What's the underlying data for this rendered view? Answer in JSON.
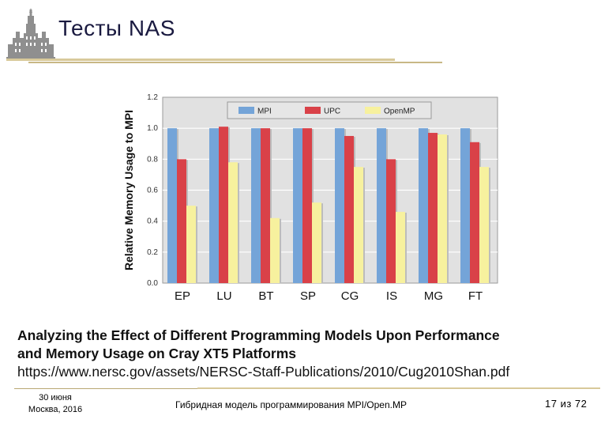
{
  "slide": {
    "title": "Тесты NAS",
    "caption_line1": "Analyzing the Effect of Different Programming Models Upon Performance",
    "caption_line2": "and Memory Usage on Cray XT5 Platforms",
    "caption_url": "https://www.nersc.gov/assets/NERSC-Staff-Publications/2010/Cug2010Shan.pdf"
  },
  "footer": {
    "date_line1": "30 июня",
    "date_line2": "Москва, 2016",
    "center": "Гибридная модель программирования MPI/Open.MP",
    "page": "17 из 72"
  },
  "colors": {
    "mpi": "#74a4d8",
    "upc": "#d94148",
    "openmp": "#f7f19e",
    "plot_bg": "#e1e1e1",
    "legend_bg": "#e6e6e6",
    "logo": "#8f8f8f"
  },
  "chart_data": {
    "type": "bar",
    "title": "",
    "xlabel": "",
    "ylabel": "Relative Memory Usage to MPI",
    "ylim": [
      0,
      1.2
    ],
    "yticks": [
      "0.0",
      "0.2",
      "0.4",
      "0.6",
      "0.8",
      "1.0",
      "1.2"
    ],
    "categories": [
      "EP",
      "LU",
      "BT",
      "SP",
      "CG",
      "IS",
      "MG",
      "FT"
    ],
    "legend_position": "top",
    "series": [
      {
        "name": "MPI",
        "values": [
          1.0,
          1.0,
          1.0,
          1.0,
          1.0,
          1.0,
          1.0,
          1.0
        ]
      },
      {
        "name": "UPC",
        "values": [
          0.8,
          1.01,
          1.0,
          1.0,
          0.95,
          0.8,
          0.97,
          0.91
        ]
      },
      {
        "name": "OpenMP",
        "values": [
          0.5,
          0.78,
          0.42,
          0.52,
          0.75,
          0.46,
          0.96,
          0.75
        ]
      }
    ]
  }
}
